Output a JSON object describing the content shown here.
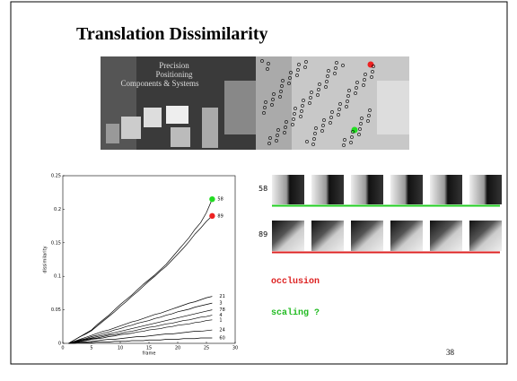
{
  "title": "Translation Dissimilarity",
  "photo_text": [
    "Precision",
    "Positioning",
    "Components & Systems"
  ],
  "chart_data": {
    "type": "line",
    "xlabel": "frame",
    "ylabel": "dissimilarity",
    "x": [
      1,
      2,
      3,
      4,
      5,
      6,
      7,
      8,
      9,
      10,
      11,
      12,
      13,
      14,
      15,
      16,
      17,
      18,
      19,
      20,
      21,
      22,
      23,
      24,
      25,
      26
    ],
    "xlim": [
      0,
      30
    ],
    "xticks": [
      0,
      5,
      10,
      15,
      20,
      25,
      30
    ],
    "ylim": [
      0,
      0.25
    ],
    "yticks": [
      0,
      0.05,
      0.1,
      0.15,
      0.2,
      0.25
    ],
    "series": [
      {
        "name": "58",
        "color": "#000000",
        "marker_color": "#22dd22",
        "values": [
          0,
          0.005,
          0.01,
          0.015,
          0.02,
          0.028,
          0.035,
          0.042,
          0.05,
          0.058,
          0.065,
          0.072,
          0.08,
          0.088,
          0.095,
          0.102,
          0.11,
          0.118,
          0.128,
          0.138,
          0.148,
          0.158,
          0.17,
          0.18,
          0.195,
          0.215
        ]
      },
      {
        "name": "89",
        "color": "#000000",
        "marker_color": "#ee2222",
        "values": [
          0,
          0.005,
          0.01,
          0.014,
          0.019,
          0.026,
          0.033,
          0.04,
          0.047,
          0.055,
          0.062,
          0.07,
          0.077,
          0.085,
          0.093,
          0.1,
          0.108,
          0.115,
          0.124,
          0.133,
          0.142,
          0.152,
          0.163,
          0.172,
          0.182,
          0.19
        ]
      },
      {
        "name": "21",
        "color": "#000000",
        "values": [
          0,
          0.003,
          0.006,
          0.009,
          0.012,
          0.015,
          0.018,
          0.02,
          0.023,
          0.026,
          0.029,
          0.032,
          0.034,
          0.037,
          0.04,
          0.043,
          0.045,
          0.048,
          0.051,
          0.054,
          0.057,
          0.06,
          0.062,
          0.065,
          0.068,
          0.07
        ]
      },
      {
        "name": "3",
        "color": "#000000",
        "values": [
          0,
          0.002,
          0.005,
          0.007,
          0.01,
          0.012,
          0.015,
          0.017,
          0.02,
          0.022,
          0.025,
          0.027,
          0.03,
          0.032,
          0.034,
          0.037,
          0.039,
          0.042,
          0.044,
          0.047,
          0.049,
          0.051,
          0.054,
          0.056,
          0.058,
          0.06
        ]
      },
      {
        "name": "78",
        "color": "#000000",
        "values": [
          0,
          0.002,
          0.004,
          0.006,
          0.008,
          0.01,
          0.012,
          0.014,
          0.016,
          0.018,
          0.02,
          0.022,
          0.024,
          0.026,
          0.028,
          0.03,
          0.032,
          0.034,
          0.036,
          0.038,
          0.04,
          0.042,
          0.044,
          0.046,
          0.048,
          0.05
        ]
      },
      {
        "name": "4",
        "color": "#000000",
        "values": [
          0,
          0.002,
          0.003,
          0.005,
          0.007,
          0.008,
          0.01,
          0.012,
          0.013,
          0.015,
          0.017,
          0.018,
          0.02,
          0.022,
          0.024,
          0.025,
          0.027,
          0.029,
          0.03,
          0.032,
          0.034,
          0.035,
          0.037,
          0.039,
          0.04,
          0.042
        ]
      },
      {
        "name": "1",
        "color": "#000000",
        "values": [
          0,
          0.001,
          0.003,
          0.004,
          0.006,
          0.007,
          0.008,
          0.01,
          0.011,
          0.013,
          0.014,
          0.015,
          0.017,
          0.018,
          0.02,
          0.021,
          0.022,
          0.024,
          0.025,
          0.027,
          0.028,
          0.029,
          0.031,
          0.032,
          0.034,
          0.035
        ]
      },
      {
        "name": "24",
        "color": "#000000",
        "values": [
          0,
          0.001,
          0.002,
          0.002,
          0.003,
          0.004,
          0.005,
          0.006,
          0.006,
          0.007,
          0.008,
          0.009,
          0.01,
          0.01,
          0.011,
          0.012,
          0.013,
          0.014,
          0.014,
          0.015,
          0.016,
          0.017,
          0.018,
          0.018,
          0.019,
          0.02
        ]
      },
      {
        "name": "60",
        "color": "#000000",
        "values": [
          0,
          0,
          0.001,
          0.001,
          0.001,
          0.002,
          0.002,
          0.002,
          0.003,
          0.003,
          0.003,
          0.004,
          0.004,
          0.004,
          0.005,
          0.005,
          0.005,
          0.006,
          0.006,
          0.006,
          0.007,
          0.007,
          0.007,
          0.008,
          0.008,
          0.008
        ]
      }
    ]
  },
  "patch_rows": [
    {
      "label": "58",
      "color": "#22cc22"
    },
    {
      "label": "89",
      "color": "#dd2222"
    }
  ],
  "annotations": [
    {
      "text": "occlusion",
      "color": "#dd2222"
    },
    {
      "text": "scaling ?",
      "color": "#22bb22"
    }
  ],
  "page_number": "38"
}
